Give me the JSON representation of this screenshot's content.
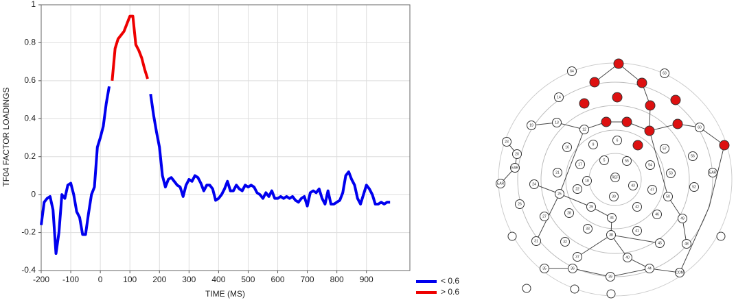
{
  "chart_data": {
    "type": "line",
    "xlabel": "TIME (MS)",
    "ylabel": "TF04 FACTOR LOADINGS",
    "xlim": [
      -200,
      1040
    ],
    "xticks": [
      -200,
      -100,
      0,
      100,
      200,
      300,
      400,
      500,
      600,
      700,
      800,
      900
    ],
    "ylim": [
      -0.4,
      1.0
    ],
    "yticks": [
      -0.4,
      -0.2,
      0.0,
      0.2,
      0.4,
      0.6,
      0.8,
      1.0
    ],
    "grid": true,
    "legend": "bottom-right",
    "series": [
      {
        "name": "< 0.6",
        "color": "#0000ee",
        "x": [
          -200,
          -190,
          -180,
          -170,
          -160,
          -150,
          -140,
          -130,
          -120,
          -110,
          -100,
          -90,
          -80,
          -70,
          -60,
          -50,
          -40,
          -30,
          -20,
          -10,
          0,
          10,
          20,
          30,
          100,
          170,
          180,
          190,
          200,
          210,
          220,
          230,
          240,
          250,
          260,
          270,
          280,
          290,
          300,
          310,
          320,
          330,
          340,
          350,
          360,
          370,
          380,
          390,
          400,
          410,
          420,
          430,
          440,
          450,
          460,
          470,
          480,
          490,
          500,
          510,
          520,
          530,
          540,
          550,
          560,
          570,
          580,
          590,
          600,
          610,
          620,
          630,
          640,
          650,
          660,
          670,
          680,
          690,
          700,
          710,
          720,
          730,
          740,
          750,
          760,
          770,
          780,
          790,
          800,
          810,
          820,
          830,
          840,
          850,
          860,
          870,
          880,
          890,
          900,
          910,
          920,
          930,
          940,
          950,
          960,
          970,
          980
        ],
        "values": [
          -0.16,
          -0.04,
          -0.02,
          -0.01,
          -0.08,
          -0.31,
          -0.2,
          0.0,
          -0.02,
          0.05,
          0.06,
          0.0,
          -0.09,
          -0.12,
          -0.21,
          -0.21,
          -0.1,
          0.0,
          0.04,
          0.25,
          0.3,
          0.36,
          0.48,
          0.57,
          null,
          0.53,
          0.42,
          0.33,
          0.25,
          0.1,
          0.04,
          0.08,
          0.09,
          0.07,
          0.05,
          0.04,
          -0.01,
          0.05,
          0.08,
          0.07,
          0.1,
          0.09,
          0.06,
          0.02,
          0.05,
          0.05,
          0.03,
          -0.03,
          -0.02,
          0.0,
          0.03,
          0.07,
          0.02,
          0.02,
          0.05,
          0.03,
          0.02,
          0.05,
          0.04,
          0.05,
          0.04,
          0.01,
          0.0,
          -0.02,
          0.01,
          -0.01,
          0.02,
          -0.02,
          -0.02,
          -0.01,
          -0.02,
          -0.01,
          -0.02,
          -0.01,
          -0.03,
          -0.04,
          -0.02,
          -0.01,
          -0.06,
          0.01,
          0.02,
          0.01,
          0.03,
          -0.02,
          -0.05,
          0.02,
          -0.05,
          -0.05,
          -0.04,
          -0.03,
          0.01,
          0.1,
          0.12,
          0.08,
          0.05,
          -0.02,
          -0.05,
          0.0,
          0.05,
          0.03,
          0.0,
          -0.05,
          -0.05,
          -0.04,
          -0.05,
          -0.04,
          -0.04
        ]
      },
      {
        "name": "> 0.6",
        "color": "#ee0000",
        "x": [
          40,
          50,
          60,
          70,
          80,
          90,
          100,
          110,
          120,
          130,
          140,
          150,
          160
        ],
        "values": [
          0.6,
          0.77,
          0.82,
          0.84,
          0.86,
          0.9,
          0.94,
          0.94,
          0.79,
          0.76,
          0.72,
          0.66,
          0.61
        ]
      }
    ]
  },
  "electrode_map": {
    "labels": [
      "64",
      "63",
      "14",
      "19",
      "13",
      "12",
      "9",
      "6",
      "60",
      "23",
      "16",
      "57",
      "56",
      "20",
      "17",
      "5",
      "55",
      "54",
      "21",
      "EAR",
      "18",
      "REF",
      "53",
      "EAR",
      "EAR",
      "24",
      "22",
      "43",
      "47",
      "52",
      "25",
      "30",
      "50",
      "26",
      "29",
      "42",
      "27",
      "28",
      "34",
      "46",
      "49",
      "33",
      "41",
      "31",
      "32",
      "38",
      "45",
      "48",
      "37",
      "40",
      "35",
      "36",
      "39",
      "44",
      "COM"
    ]
  }
}
